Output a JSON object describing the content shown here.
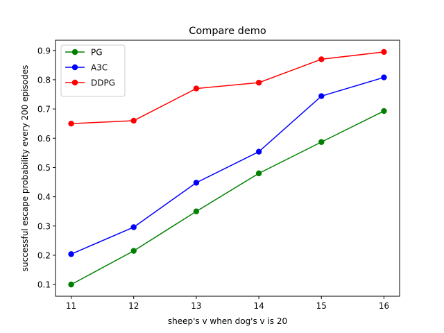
{
  "chart_data": {
    "type": "line",
    "title": "Compare demo",
    "xlabel": "sheep's v when dog's v is 20",
    "ylabel": "successful escape probability every 200 episodes",
    "x": [
      11,
      12,
      13,
      14,
      15,
      16
    ],
    "xlim": [
      10.75,
      16.25
    ],
    "ylim": [
      0.06,
      0.935
    ],
    "xticks": [
      "11",
      "12",
      "13",
      "14",
      "15",
      "16"
    ],
    "yticks": [
      "0.1",
      "0.2",
      "0.3",
      "0.4",
      "0.5",
      "0.6",
      "0.7",
      "0.8",
      "0.9"
    ],
    "grid": false,
    "legend_position": "top-left",
    "series": [
      {
        "name": "PG",
        "color": "#008000",
        "values": [
          0.1,
          0.215,
          0.35,
          0.48,
          0.587,
          0.693
        ]
      },
      {
        "name": "A3C",
        "color": "#0000ff",
        "values": [
          0.204,
          0.296,
          0.448,
          0.554,
          0.744,
          0.808
        ]
      },
      {
        "name": "DDPG",
        "color": "#ff0000",
        "values": [
          0.65,
          0.66,
          0.77,
          0.79,
          0.87,
          0.895
        ]
      }
    ]
  }
}
